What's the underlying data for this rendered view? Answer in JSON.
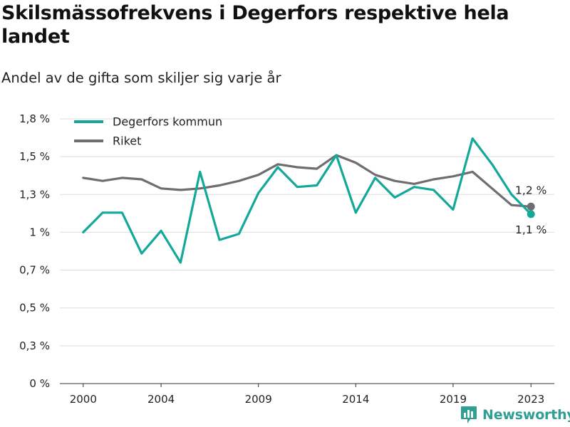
{
  "title": "Skilsmässofrekvens i Degerfors respektive hela landet",
  "subtitle": "Andel av de gifta som skiljer sig varje år",
  "brand": "Newsworthy",
  "chart_data": {
    "type": "line",
    "title": "Skilsmässofrekvens i Degerfors respektive hela landet",
    "subtitle": "Andel av de gifta som skiljer sig varje år",
    "xlabel": "",
    "ylabel": "",
    "x": [
      2000,
      2001,
      2002,
      2003,
      2004,
      2005,
      2006,
      2007,
      2008,
      2009,
      2010,
      2011,
      2012,
      2013,
      2014,
      2015,
      2016,
      2017,
      2018,
      2019,
      2020,
      2021,
      2022,
      2023
    ],
    "x_ticks": [
      2000,
      2004,
      2009,
      2014,
      2019,
      2023
    ],
    "x_tick_labels": [
      "2000",
      "2004",
      "2009",
      "2014",
      "2019",
      "2023"
    ],
    "ylim": [
      0,
      1.75
    ],
    "y_ticks": [
      0,
      0.25,
      0.5,
      0.75,
      1.0,
      1.25,
      1.5,
      1.75
    ],
    "y_tick_labels": [
      "0 %",
      "0,3 %",
      "0,5 %",
      "0,7 %",
      "1 %",
      "1,3 %",
      "1,5 %",
      "1,8 %"
    ],
    "grid": true,
    "legend_position": "top-left",
    "series": [
      {
        "name": "Degerfors kommun",
        "color": "#13a89a",
        "values": [
          1.0,
          1.13,
          1.13,
          0.86,
          1.01,
          0.8,
          1.4,
          0.95,
          0.99,
          1.26,
          1.43,
          1.3,
          1.31,
          1.51,
          1.13,
          1.36,
          1.23,
          1.3,
          1.28,
          1.15,
          1.62,
          1.45,
          1.25,
          1.12
        ],
        "end_label": "1,1 %"
      },
      {
        "name": "Riket",
        "color": "#6f6c72",
        "values": [
          1.36,
          1.34,
          1.36,
          1.35,
          1.29,
          1.28,
          1.29,
          1.31,
          1.34,
          1.38,
          1.45,
          1.43,
          1.42,
          1.51,
          1.46,
          1.38,
          1.34,
          1.32,
          1.35,
          1.37,
          1.4,
          1.29,
          1.18,
          1.17
        ],
        "end_label": "1,2 %"
      }
    ]
  }
}
